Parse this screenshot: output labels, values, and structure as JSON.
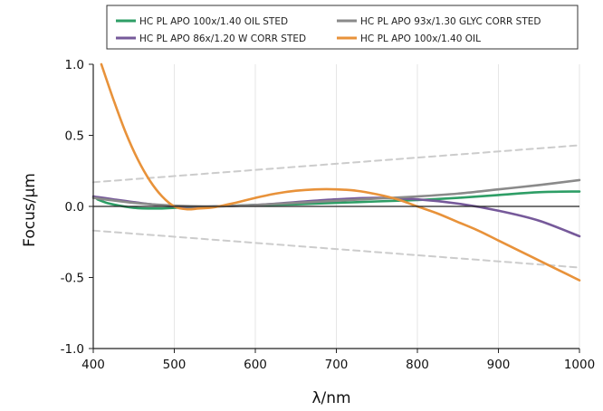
{
  "chart_data": {
    "type": "line",
    "title": "",
    "xlabel": "λ/nm",
    "ylabel": "Focus/µm",
    "xlim": [
      400,
      1000
    ],
    "ylim": [
      -1.0,
      1.0
    ],
    "x_ticks": [
      "400",
      "500",
      "600",
      "700",
      "800",
      "900",
      "1000"
    ],
    "y_ticks": [
      "-1.0",
      "-0.5",
      "0.0",
      "0.5",
      "1.0"
    ],
    "grid": "vertical",
    "legend_position": "top",
    "series": [
      {
        "name": "HC PL APO 100x/1.40 OIL STED",
        "color": "#2e9e66",
        "x": [
          405,
          420,
          450,
          480,
          500,
          550,
          600,
          650,
          700,
          750,
          800,
          850,
          900,
          950,
          1000
        ],
        "y": [
          0.05,
          0.02,
          -0.01,
          -0.015,
          -0.01,
          0.0,
          0.01,
          0.015,
          0.025,
          0.035,
          0.045,
          0.06,
          0.08,
          0.1,
          0.105
        ]
      },
      {
        "name": "HC PL APO 86x/1.20 W CORR STED",
        "color": "#76599a",
        "x": [
          400,
          450,
          500,
          550,
          600,
          650,
          700,
          750,
          800,
          850,
          900,
          950,
          1000
        ],
        "y": [
          0.07,
          0.03,
          0.0,
          0.0,
          0.01,
          0.03,
          0.05,
          0.06,
          0.05,
          0.02,
          -0.03,
          -0.1,
          -0.21
        ]
      },
      {
        "name": "HC PL APO 93x/1.30 GLYC CORR STED",
        "color": "#8a8a8a",
        "x": [
          400,
          450,
          500,
          550,
          600,
          650,
          700,
          750,
          800,
          850,
          900,
          950,
          1000
        ],
        "y": [
          0.06,
          0.025,
          0.005,
          0.0,
          0.01,
          0.025,
          0.04,
          0.055,
          0.07,
          0.09,
          0.12,
          0.15,
          0.185
        ]
      },
      {
        "name": "HC PL APO 100x/1.40 OIL",
        "color": "#e8923a",
        "x": [
          410,
          425,
          440,
          455,
          470,
          485,
          500,
          515,
          530,
          550,
          575,
          600,
          625,
          650,
          675,
          700,
          725,
          750,
          775,
          800,
          825,
          850,
          875,
          900,
          925,
          950,
          975,
          1000
        ],
        "y": [
          1.0,
          0.75,
          0.52,
          0.33,
          0.18,
          0.07,
          0.0,
          -0.02,
          -0.015,
          -0.005,
          0.025,
          0.06,
          0.09,
          0.11,
          0.12,
          0.12,
          0.11,
          0.085,
          0.05,
          0.0,
          -0.05,
          -0.11,
          -0.17,
          -0.24,
          -0.31,
          -0.38,
          -0.45,
          -0.52
        ]
      },
      {
        "color": "#cccccc",
        "dashed": true,
        "x": [
          400,
          1000
        ],
        "y": [
          0.17,
          0.43
        ]
      },
      {
        "color": "#cccccc",
        "dashed": true,
        "x": [
          400,
          1000
        ],
        "y": [
          -0.17,
          -0.43
        ]
      }
    ]
  },
  "legend": {
    "items": [
      {
        "label": "HC PL APO 100x/1.40 OIL STED",
        "color": "#2e9e66"
      },
      {
        "label": "HC PL APO 93x/1.30 GLYC CORR STED",
        "color": "#8a8a8a"
      },
      {
        "label": "HC PL APO 86x/1.20 W CORR STED",
        "color": "#76599a"
      },
      {
        "label": "HC PL APO 100x/1.40 OIL",
        "color": "#e8923a"
      }
    ]
  }
}
